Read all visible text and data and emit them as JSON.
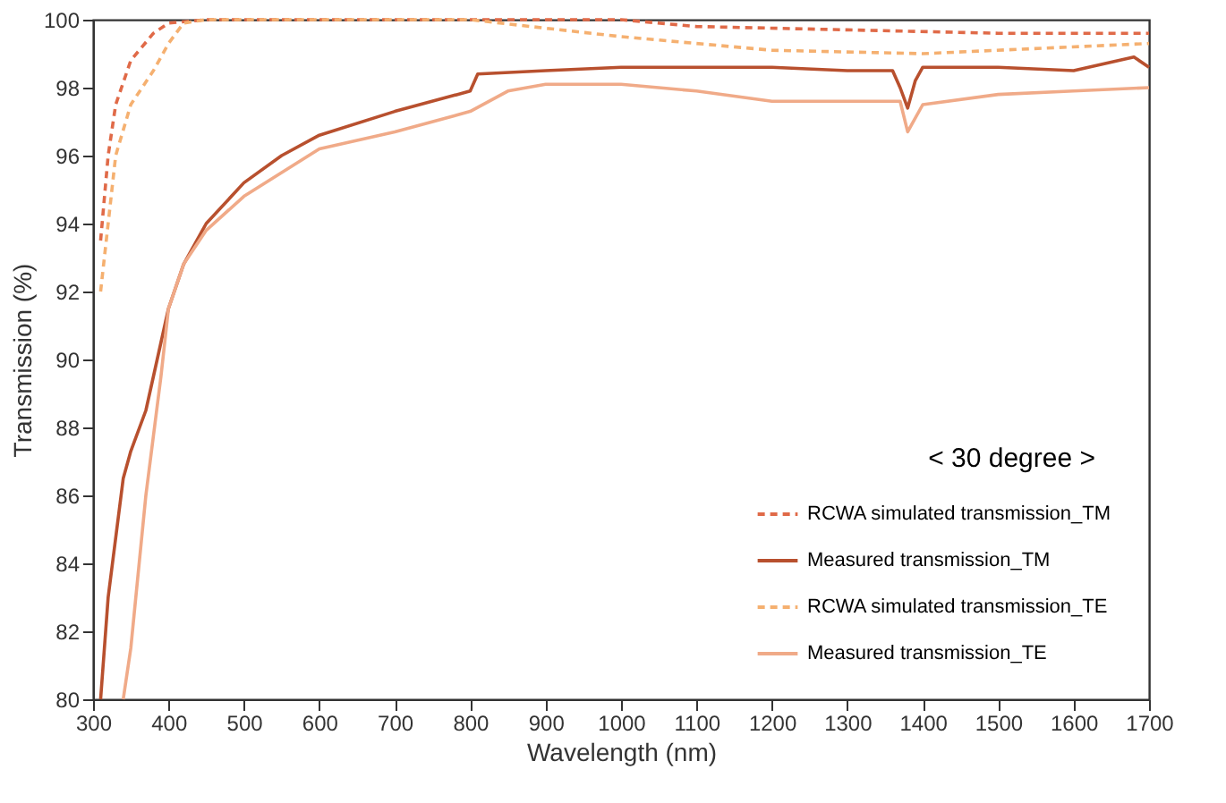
{
  "chart_data": {
    "type": "line",
    "xlabel": "Wavelength (nm)",
    "ylabel": "Transmission (%)",
    "xlim": [
      300,
      1700
    ],
    "ylim": [
      80,
      100
    ],
    "xticks": [
      300,
      400,
      500,
      600,
      700,
      800,
      900,
      1000,
      1100,
      1200,
      1300,
      1400,
      1500,
      1600,
      1700
    ],
    "yticks": [
      80,
      82,
      84,
      86,
      88,
      90,
      92,
      94,
      96,
      98,
      100
    ],
    "grid": false,
    "legend": "bottom right",
    "marker": "none",
    "annotations": [
      "< 30 degree >"
    ],
    "series": [
      {
        "name": "RCWA simulated transmission_TM",
        "color": "#e06a48",
        "line_style": "dashed",
        "x": [
          310,
          320,
          330,
          350,
          380,
          400,
          450,
          600,
          800,
          1000,
          1100,
          1300,
          1500,
          1700
        ],
        "values": [
          93.5,
          96,
          97.5,
          98.8,
          99.6,
          99.9,
          100,
          100,
          100,
          100,
          99.8,
          99.7,
          99.6,
          99.6
        ]
      },
      {
        "name": "Measured transmission_TM",
        "color": "#b8502e",
        "line_style": "solid",
        "x": [
          310,
          320,
          340,
          350,
          370,
          390,
          400,
          420,
          450,
          500,
          550,
          600,
          700,
          800,
          810,
          900,
          1000,
          1100,
          1200,
          1300,
          1360,
          1370,
          1380,
          1390,
          1400,
          1500,
          1600,
          1680,
          1700
        ],
        "values": [
          80,
          83,
          86.5,
          87.3,
          88.5,
          90.5,
          91.5,
          92.8,
          94,
          95.2,
          96,
          96.6,
          97.3,
          97.9,
          98.4,
          98.5,
          98.6,
          98.6,
          98.6,
          98.5,
          98.5,
          98.0,
          97.4,
          98.2,
          98.6,
          98.6,
          98.5,
          98.9,
          98.6
        ]
      },
      {
        "name": "RCWA simulated transmission_TE",
        "color": "#f5b070",
        "line_style": "dashed",
        "x": [
          310,
          330,
          350,
          380,
          400,
          420,
          450,
          600,
          800,
          1000,
          1200,
          1400,
          1700
        ],
        "values": [
          92,
          96,
          97.5,
          98.5,
          99.3,
          99.9,
          100,
          100,
          100,
          99.5,
          99.1,
          99.0,
          99.3
        ]
      },
      {
        "name": "Measured transmission_TE",
        "color": "#f0aa88",
        "line_style": "solid",
        "x": [
          340,
          350,
          370,
          390,
          400,
          420,
          450,
          500,
          600,
          700,
          800,
          850,
          900,
          1000,
          1100,
          1200,
          1300,
          1370,
          1380,
          1400,
          1500,
          1600,
          1700
        ],
        "values": [
          80,
          81.5,
          86,
          89.5,
          91.5,
          92.8,
          93.8,
          94.8,
          96.2,
          96.7,
          97.3,
          97.9,
          98.1,
          98.1,
          97.9,
          97.6,
          97.6,
          97.6,
          96.7,
          97.5,
          97.8,
          97.9,
          98.0
        ]
      }
    ]
  }
}
